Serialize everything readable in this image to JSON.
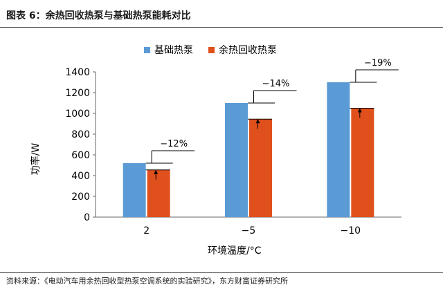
{
  "figure": {
    "title": "图表 6：余热回收热泵与基础热泵能耗对比",
    "source": "资料来源：《电动汽车用余热回收型热泵空调系统的实验研究》，东方财富证券研究所"
  },
  "colors": {
    "series_a": "#5b9bd5",
    "series_b": "#e0501c",
    "axis": "#666666",
    "annotation": "#000000"
  },
  "chart_data": {
    "type": "bar",
    "categories": [
      "2",
      "−5",
      "−10"
    ],
    "series": [
      {
        "name": "基础热泵",
        "values": [
          520,
          1100,
          1300
        ]
      },
      {
        "name": "余热回收热泵",
        "values": [
          455,
          945,
          1050
        ]
      }
    ],
    "annotations": [
      "−12%",
      "−14%",
      "−19%"
    ],
    "xlabel": "环境温度/°C",
    "ylabel": "功率/W",
    "ylim": [
      0,
      1400
    ],
    "yticks": [
      0,
      200,
      400,
      600,
      800,
      1000,
      1200,
      1400
    ],
    "grid": false,
    "legend": "top"
  }
}
